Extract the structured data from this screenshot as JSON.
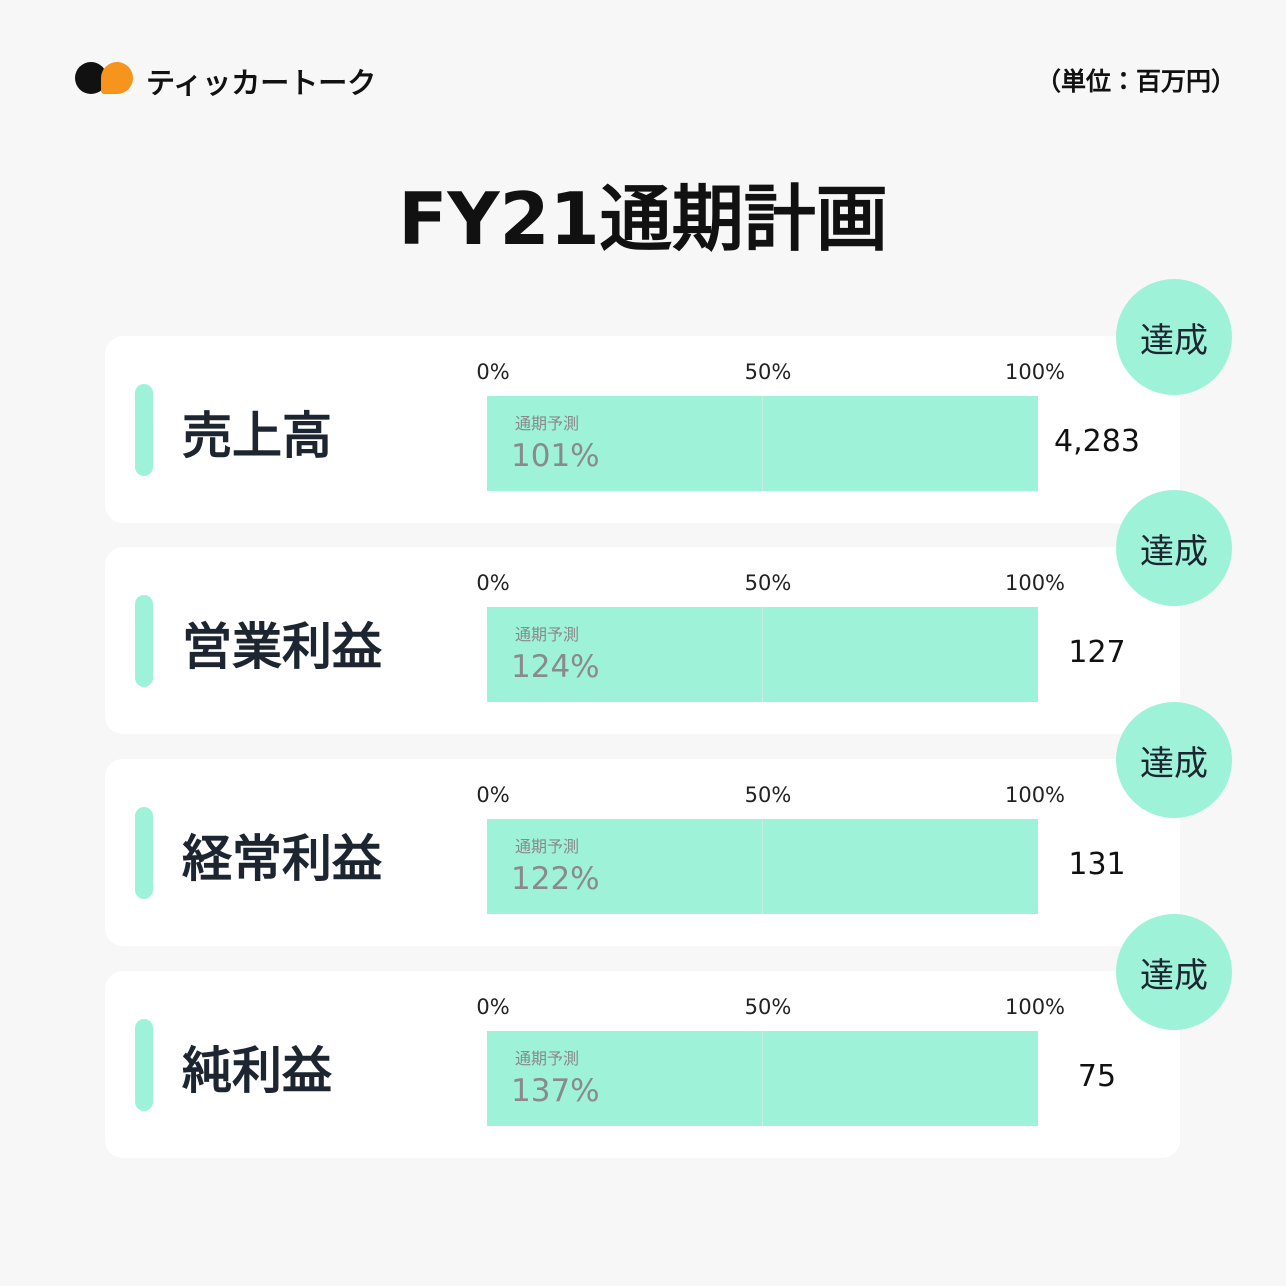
{
  "header": {
    "brand": "ティッカートーク",
    "unit": "（単位：百万円）"
  },
  "title": "FY21通期計画",
  "rows": [
    {
      "label": "売上高",
      "badge": "達成",
      "ticks": [
        "0%",
        "50%",
        "100%"
      ],
      "bar_label": "通期予測",
      "rate": "101%",
      "value": "4,283"
    },
    {
      "label": "営業利益",
      "badge": "達成",
      "ticks": [
        "0%",
        "50%",
        "100%"
      ],
      "bar_label": "通期予測",
      "rate": "124%",
      "value": "127"
    },
    {
      "label": "経常利益",
      "badge": "達成",
      "ticks": [
        "0%",
        "50%",
        "100%"
      ],
      "bar_label": "通期予測",
      "rate": "122%",
      "value": "131"
    },
    {
      "label": "純利益",
      "badge": "達成",
      "ticks": [
        "0%",
        "50%",
        "100%"
      ],
      "bar_label": "通期予測",
      "rate": "137%",
      "value": "75"
    }
  ]
}
